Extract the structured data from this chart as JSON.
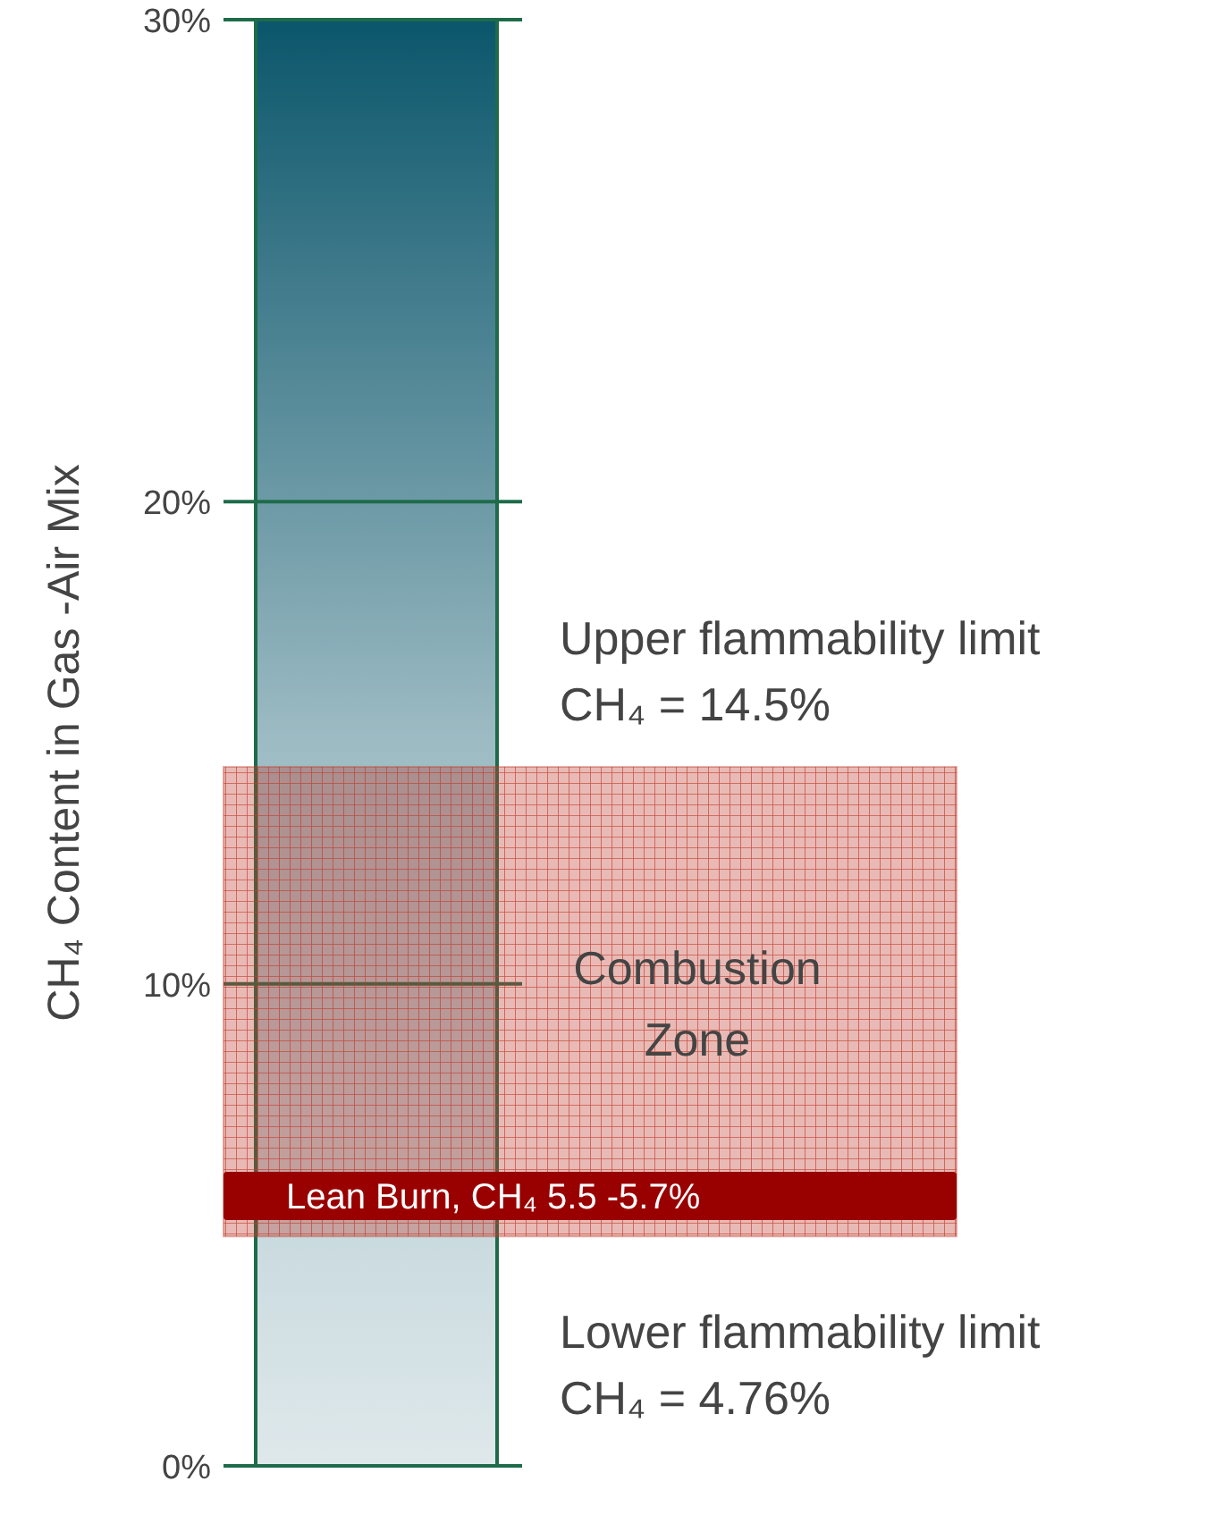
{
  "chart_data": {
    "type": "bar",
    "categories": [
      null
    ],
    "values": [
      30
    ],
    "color": "#0b566b",
    "ylabel": "CH₄ Content in Gas -Air Mix",
    "ylim": [
      0,
      30
    ],
    "yticks": [
      {
        "value": 0,
        "label": "0%"
      },
      {
        "value": 10,
        "label": "10%"
      },
      {
        "value": 20,
        "label": "20%"
      },
      {
        "value": 30,
        "label": "30%"
      }
    ],
    "grid": "y",
    "bands": [
      {
        "axis": "y",
        "from": 4.76,
        "to": 14.5,
        "label": "Combustion\nZone",
        "color": "#c0392b"
      },
      {
        "axis": "y",
        "from": 5.1,
        "to": 6.1,
        "label": "Lean Burn, CH₄ 5.5 -5.7%",
        "color": "#990000"
      }
    ],
    "annotations": [
      "Upper flammability limit\nCH₄ = 14.5%",
      "Lower flammability limit\nCH₄ = 4.76%"
    ]
  }
}
